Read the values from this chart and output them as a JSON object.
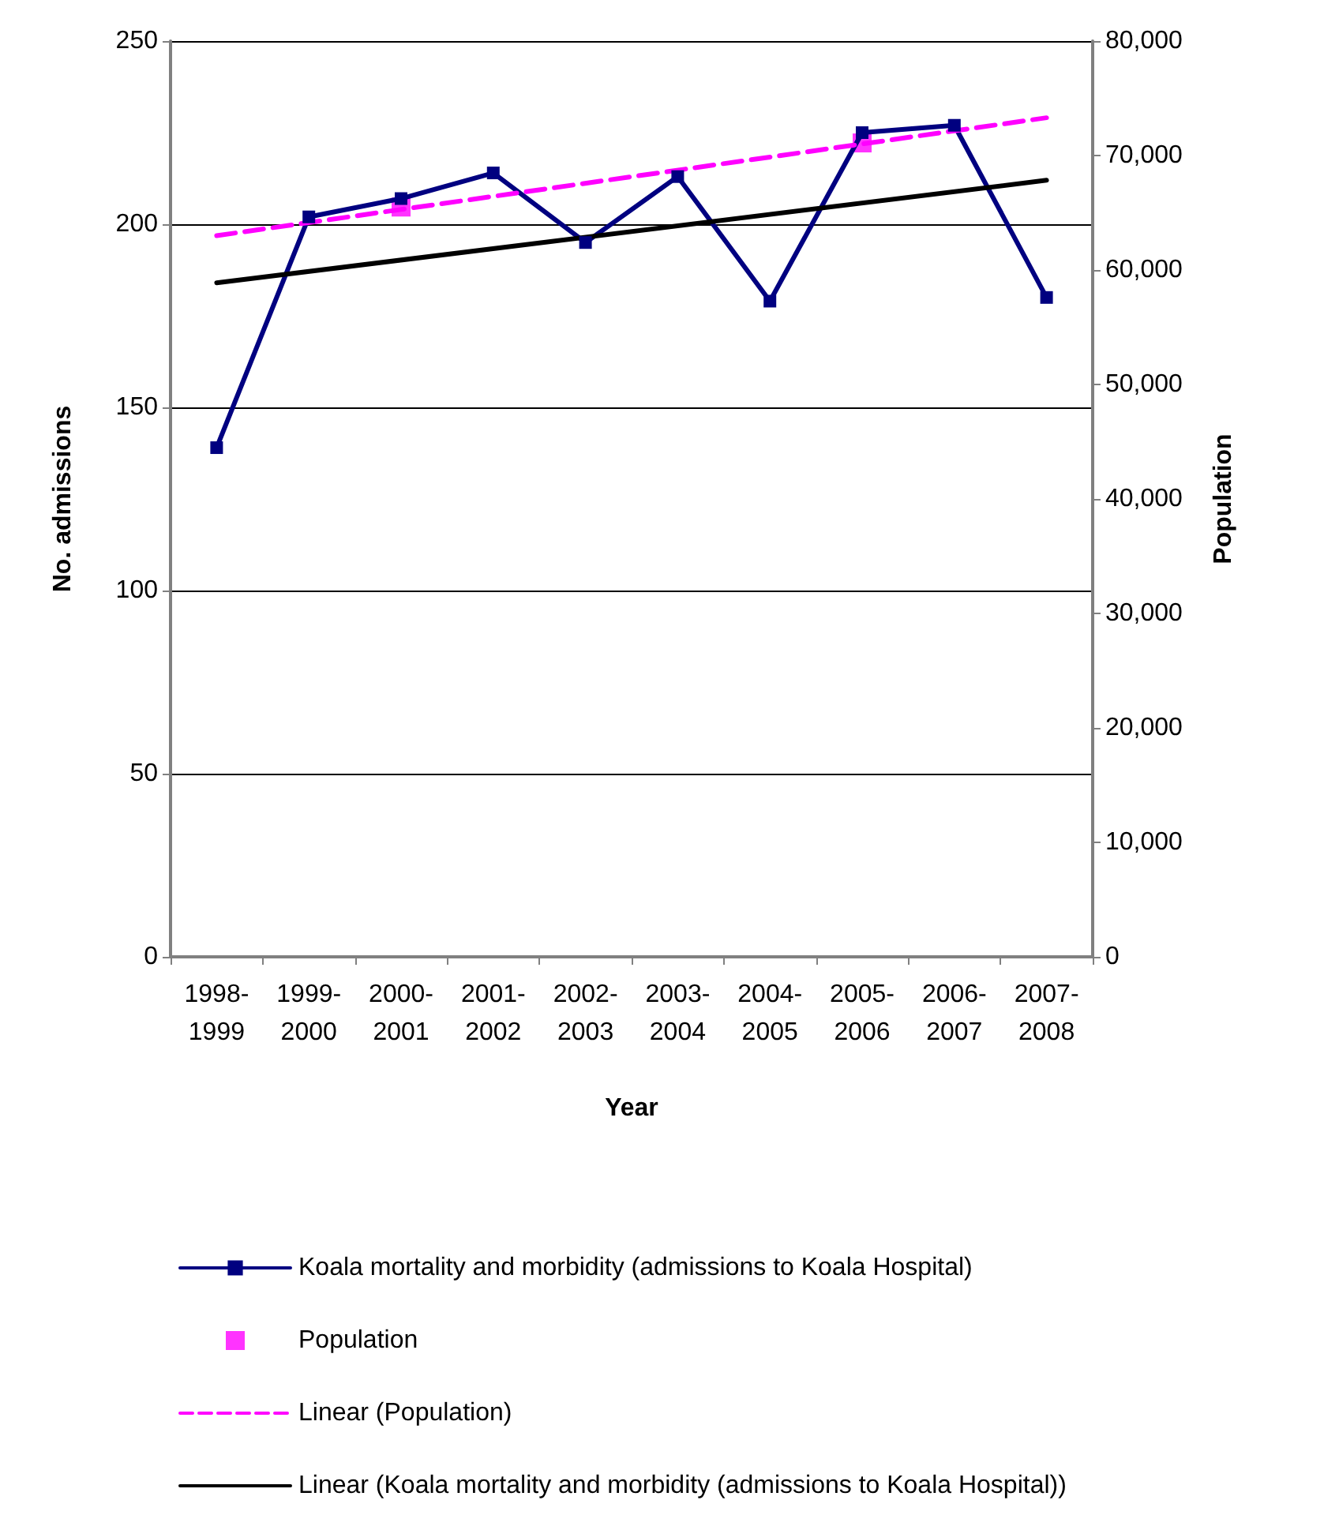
{
  "chart_data": {
    "type": "line",
    "xlabel": "Year",
    "ylabel": "No. admissions",
    "y2label": "Population",
    "categories": [
      "1998-1999",
      "1999-2000",
      "2000-2001",
      "2001-2002",
      "2002-2003",
      "2003-2004",
      "2004-2005",
      "2005-2006",
      "2006-2007",
      "2007-2008"
    ],
    "series": [
      {
        "name": "Koala mortality and morbidity (admissions to Koala Hospital)",
        "type": "line",
        "color": "#000080",
        "marker": "square",
        "values": [
          139,
          202,
          207,
          214,
          195,
          213,
          179,
          225,
          227,
          180
        ]
      },
      {
        "name": "Population",
        "type": "scatter",
        "axis": "y2",
        "color": "#ff00ff",
        "marker": "square",
        "values": [
          null,
          null,
          65500,
          null,
          null,
          null,
          null,
          71100,
          null,
          null
        ]
      },
      {
        "name": "Linear (Population)",
        "type": "line",
        "axis": "y2",
        "color": "#ff00ff",
        "marker": "none",
        "line_style": "dashed",
        "x": [
          "1998-1999",
          "2007-2008"
        ],
        "values": [
          63000,
          73300
        ]
      },
      {
        "name": "Linear (Koala mortality and morbidity (admissions to Koala Hospital))",
        "type": "line",
        "color": "#000000",
        "marker": "none",
        "line_style": "solid",
        "x": [
          "1998-1999",
          "2007-2008"
        ],
        "values": [
          184,
          212
        ]
      }
    ],
    "ylim": [
      0,
      250
    ],
    "yticks": [
      0,
      50,
      100,
      150,
      200,
      250
    ],
    "y2lim": [
      0,
      80000
    ],
    "y2ticks": [
      {
        "value": 0,
        "label": "0"
      },
      {
        "value": 10000,
        "label": "10,000"
      },
      {
        "value": 20000,
        "label": "20,000"
      },
      {
        "value": 30000,
        "label": "30,000"
      },
      {
        "value": 40000,
        "label": "40,000"
      },
      {
        "value": 50000,
        "label": "50,000"
      },
      {
        "value": 60000,
        "label": "60,000"
      },
      {
        "value": 70000,
        "label": "70,000"
      },
      {
        "value": 80000,
        "label": "80,000"
      }
    ],
    "grid": "y",
    "legend": "bottom"
  }
}
